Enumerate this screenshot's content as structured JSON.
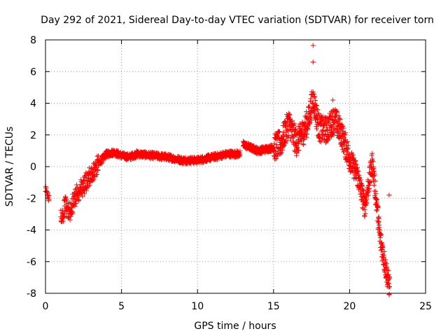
{
  "chart_data": {
    "type": "scatter",
    "title": "Day 292 of 2021, Sidereal Day-to-day VTEC variation (SDTVAR) for receiver torn",
    "xlabel": "GPS time / hours",
    "ylabel": "SDTVAR / TECUs",
    "xlim": [
      0,
      25
    ],
    "ylim": [
      -8,
      8
    ],
    "x_ticks": [
      "0",
      "5",
      "10",
      "15",
      "20",
      "25"
    ],
    "y_ticks": [
      "-8",
      "-6",
      "-4",
      "-2",
      "0",
      "2",
      "4",
      "6",
      "8"
    ],
    "grid": true,
    "marker": "+",
    "series_color": "#ff0000",
    "series": [
      {
        "name": "SDTVAR",
        "trend_x": [
          0.0,
          0.2,
          1.0,
          1.3,
          1.6,
          2.0,
          2.5,
          3.0,
          3.5,
          4.0,
          4.5,
          5.0,
          5.5,
          6.0,
          7.0,
          8.0,
          9.0,
          10.0,
          11.0,
          12.0,
          12.8,
          13.0,
          14.0,
          15.0,
          15.5,
          16.0,
          16.5,
          17.0,
          17.3,
          17.6,
          18.0,
          18.5,
          19.0,
          19.5,
          20.0,
          20.5,
          21.0,
          21.5,
          22.0,
          22.3,
          22.6
        ],
        "trend_y": [
          -1.3,
          -2.0,
          -3.3,
          -2.5,
          -2.8,
          -1.8,
          -1.2,
          -0.5,
          0.2,
          0.8,
          0.9,
          0.7,
          0.6,
          0.8,
          0.7,
          0.6,
          0.4,
          0.4,
          0.6,
          0.8,
          0.8,
          1.4,
          1.0,
          1.2,
          1.5,
          2.8,
          1.5,
          2.3,
          3.0,
          4.3,
          2.4,
          2.3,
          3.0,
          2.0,
          0.5,
          -0.5,
          -2.5,
          0.3,
          -4.5,
          -6.0,
          -7.5
        ]
      }
    ],
    "outliers": [
      {
        "x": 17.6,
        "y": 7.65
      },
      {
        "x": 17.6,
        "y": 6.6
      },
      {
        "x": 18.9,
        "y": 4.2
      },
      {
        "x": 22.6,
        "y": -1.8
      }
    ]
  }
}
